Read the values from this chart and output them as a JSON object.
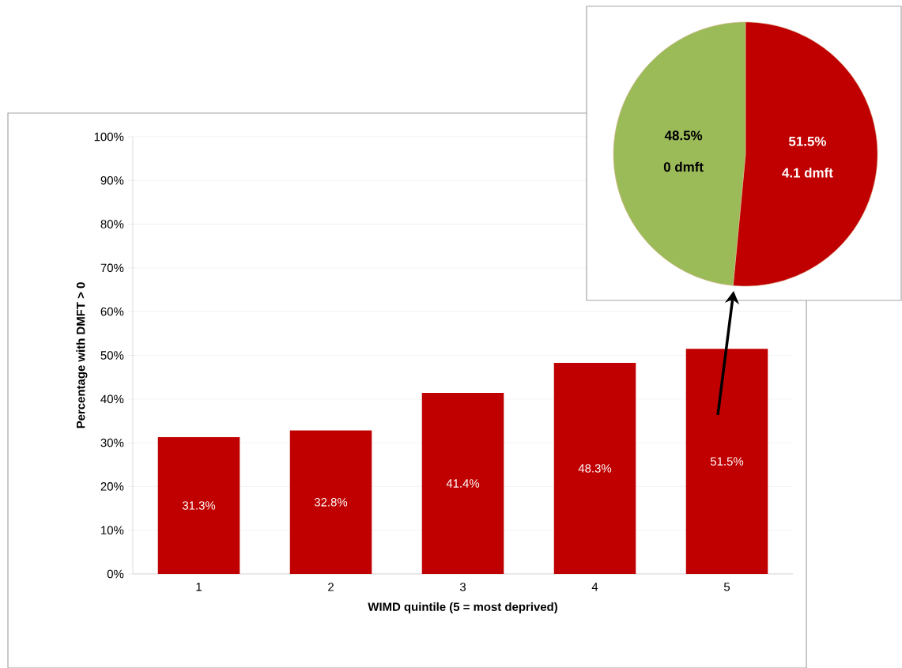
{
  "chart_data": [
    {
      "type": "bar",
      "categories": [
        "1",
        "2",
        "3",
        "4",
        "5"
      ],
      "values": [
        31.3,
        32.8,
        41.4,
        48.3,
        51.5
      ],
      "value_labels": [
        "31.3%",
        "32.8%",
        "41.4%",
        "48.3%",
        "51.5%"
      ],
      "color": "#c00000",
      "xlabel": "WIMD quintile (5 = most deprived)",
      "ylabel": "Percentage with DMFT > 0",
      "ylim": [
        0,
        100
      ],
      "grid": "y",
      "yticks": [
        {
          "value": 0,
          "label": "0%"
        },
        {
          "value": 10,
          "label": "10%"
        },
        {
          "value": 20,
          "label": "20%"
        },
        {
          "value": 30,
          "label": "30%"
        },
        {
          "value": 40,
          "label": "40%"
        },
        {
          "value": 50,
          "label": "50%"
        },
        {
          "value": 60,
          "label": "60%"
        },
        {
          "value": 70,
          "label": "70%"
        },
        {
          "value": 80,
          "label": "80%"
        },
        {
          "value": 90,
          "label": "90%"
        },
        {
          "value": 100,
          "label": "100%"
        }
      ]
    },
    {
      "type": "pie",
      "categories": [
        "4.1 dmft",
        "0 dmft"
      ],
      "values": [
        51.5,
        48.5
      ],
      "value_labels": [
        "51.5%",
        "48.5%"
      ],
      "colors": [
        "#c00000",
        "#9bbb59"
      ]
    }
  ]
}
